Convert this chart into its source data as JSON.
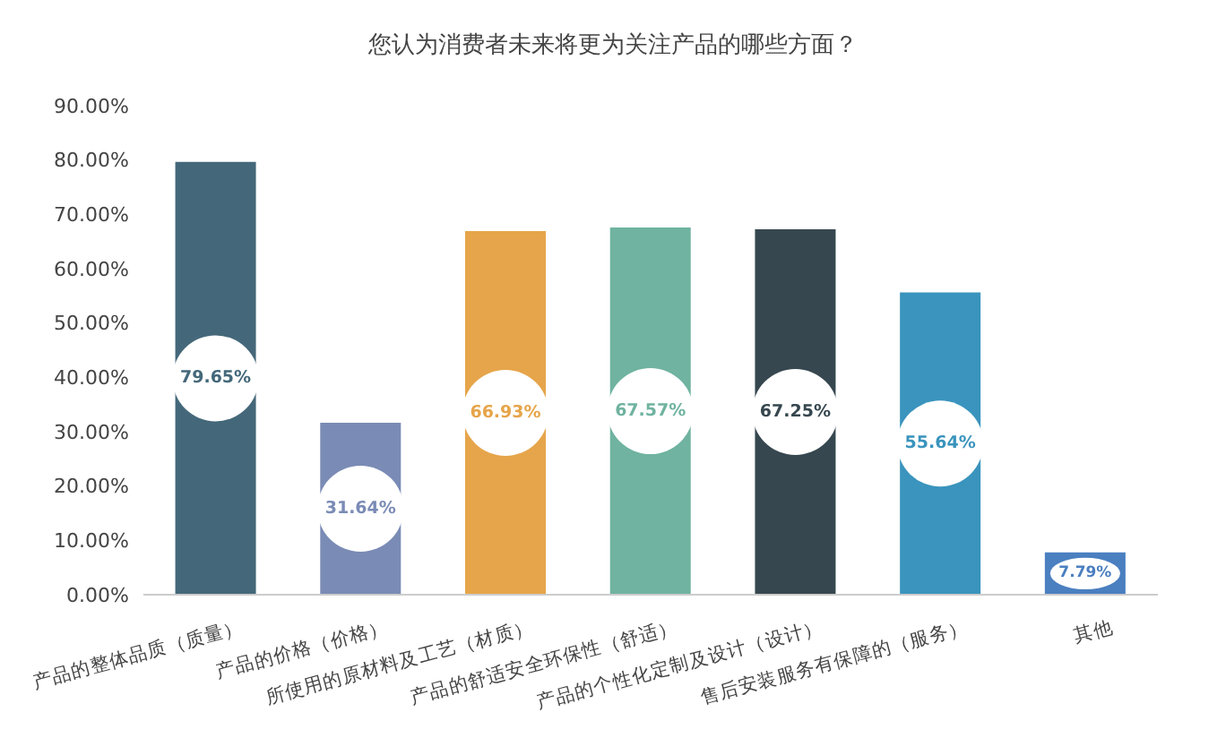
{
  "chart_data": {
    "type": "bar",
    "title": "您认为消费者未来将更为关注产品的哪些方面？",
    "categories": [
      "产品的整体品质（质量）",
      "产品的价格（价格）",
      "所使用的原材料及工艺（材质）",
      "产品的舒适安全环保性（舒适）",
      "产品的个性化定制及设计（设计）",
      "售后安装服务有保障的（服务）",
      "其他"
    ],
    "values": [
      79.65,
      31.64,
      66.93,
      67.57,
      67.25,
      55.64,
      7.79
    ],
    "value_labels": [
      "79.65%",
      "31.64%",
      "66.93%",
      "67.57%",
      "67.25%",
      "55.64%",
      "7.79%"
    ],
    "colors": [
      "#44687a",
      "#7a8bb5",
      "#e6a54a",
      "#6fb3a0",
      "#36474f",
      "#3a94bd",
      "#4a7fc0"
    ],
    "ylim": [
      0,
      90
    ],
    "yticks": [
      {
        "value": 0,
        "label": "0.00%"
      },
      {
        "value": 10,
        "label": "10.00%"
      },
      {
        "value": 20,
        "label": "20.00%"
      },
      {
        "value": 30,
        "label": "30.00%"
      },
      {
        "value": 40,
        "label": "40.00%"
      },
      {
        "value": 50,
        "label": "50.00%"
      },
      {
        "value": 60,
        "label": "60.00%"
      },
      {
        "value": 70,
        "label": "70.00%"
      },
      {
        "value": 80,
        "label": "80.00%"
      },
      {
        "value": 90,
        "label": "90.00%"
      }
    ],
    "grid": false,
    "legend": false
  }
}
